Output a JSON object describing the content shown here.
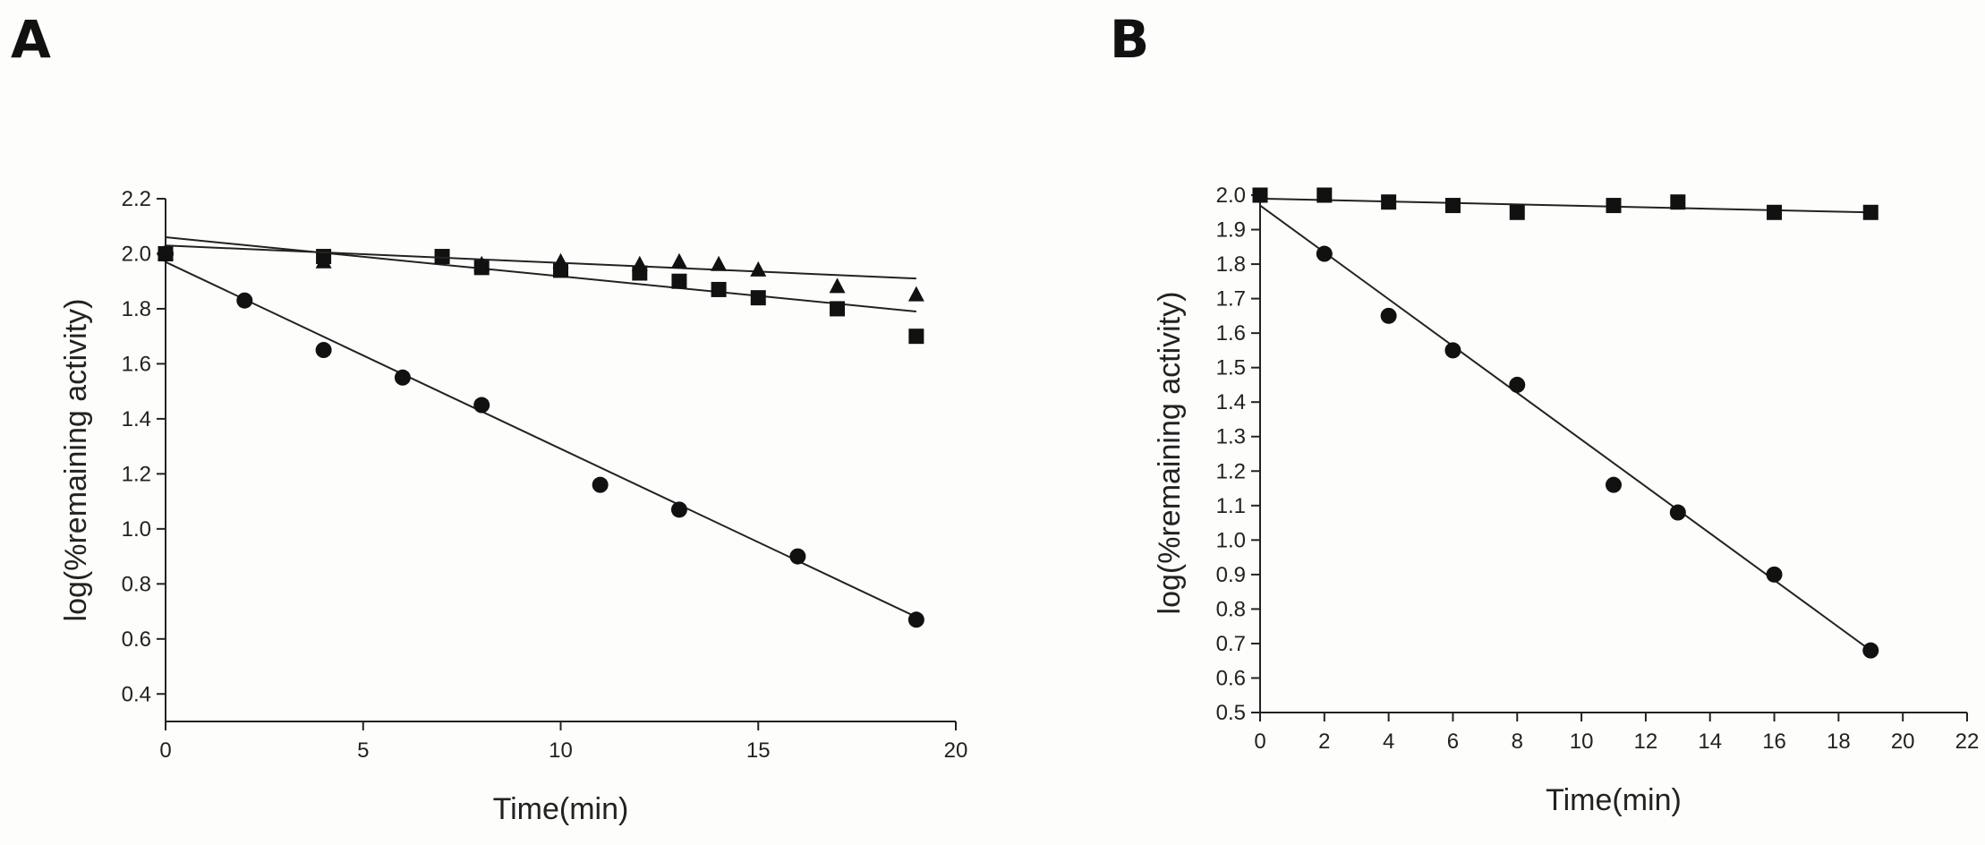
{
  "chart_data": [
    {
      "panel": "A",
      "type": "scatter",
      "xlabel": "Time(min)",
      "ylabel": "log(%remaining activity)",
      "xlim": [
        0,
        20
      ],
      "ylim": [
        0.3,
        2.2
      ],
      "xticks": [
        "0",
        "5",
        "10",
        "15",
        "20"
      ],
      "yticks": [
        "0.4",
        "0.6",
        "0.8",
        "1.0",
        "1.2",
        "1.4",
        "1.6",
        "1.8",
        "2.0",
        "2.2"
      ],
      "grid": false,
      "series": [
        {
          "marker": "circle",
          "x": [
            0,
            2,
            4,
            6,
            8,
            11,
            13,
            16,
            19
          ],
          "y": [
            2.0,
            1.83,
            1.65,
            1.55,
            1.45,
            1.16,
            1.07,
            0.9,
            0.67
          ],
          "fit": {
            "x": [
              0,
              19
            ],
            "y": [
              1.97,
              0.68
            ]
          }
        },
        {
          "marker": "square",
          "x": [
            0,
            4,
            7,
            8,
            10,
            12,
            13,
            14,
            15,
            17,
            19
          ],
          "y": [
            2.0,
            1.99,
            1.99,
            1.95,
            1.94,
            1.93,
            1.9,
            1.87,
            1.84,
            1.8,
            1.7
          ],
          "fit": {
            "x": [
              0,
              19
            ],
            "y": [
              2.06,
              1.79
            ]
          }
        },
        {
          "marker": "triangle",
          "x": [
            0,
            4,
            8,
            10,
            12,
            13,
            14,
            15,
            17,
            19
          ],
          "y": [
            2.0,
            1.97,
            1.96,
            1.97,
            1.96,
            1.97,
            1.96,
            1.94,
            1.88,
            1.85
          ],
          "fit": {
            "x": [
              0,
              19
            ],
            "y": [
              2.03,
              1.91
            ]
          }
        }
      ]
    },
    {
      "panel": "B",
      "type": "scatter",
      "xlabel": "Time(min)",
      "ylabel": "log(%remaining activity)",
      "xlim": [
        0,
        22
      ],
      "ylim": [
        0.5,
        2.0
      ],
      "xticks": [
        "0",
        "2",
        "4",
        "6",
        "8",
        "10",
        "12",
        "14",
        "16",
        "18",
        "20",
        "22"
      ],
      "yticks": [
        "0.5",
        "0.6",
        "0.7",
        "0.8",
        "0.9",
        "1.0",
        "1.1",
        "1.2",
        "1.3",
        "1.4",
        "1.5",
        "1.6",
        "1.7",
        "1.8",
        "1.9",
        "2.0"
      ],
      "grid": false,
      "series": [
        {
          "marker": "square",
          "x": [
            0,
            2,
            4,
            6,
            8,
            11,
            13,
            16,
            19
          ],
          "y": [
            2.0,
            2.0,
            1.98,
            1.97,
            1.95,
            1.97,
            1.98,
            1.95,
            1.95
          ],
          "fit": {
            "x": [
              0,
              19
            ],
            "y": [
              1.99,
              1.95
            ]
          }
        },
        {
          "marker": "circle",
          "x": [
            2,
            4,
            6,
            8,
            11,
            13,
            16,
            19
          ],
          "y": [
            1.83,
            1.65,
            1.55,
            1.45,
            1.16,
            1.08,
            0.9,
            0.68
          ],
          "fit": {
            "x": [
              0,
              19
            ],
            "y": [
              1.97,
              0.68
            ]
          }
        }
      ]
    }
  ],
  "panels": {
    "a_letter": "A",
    "b_letter": "B"
  }
}
